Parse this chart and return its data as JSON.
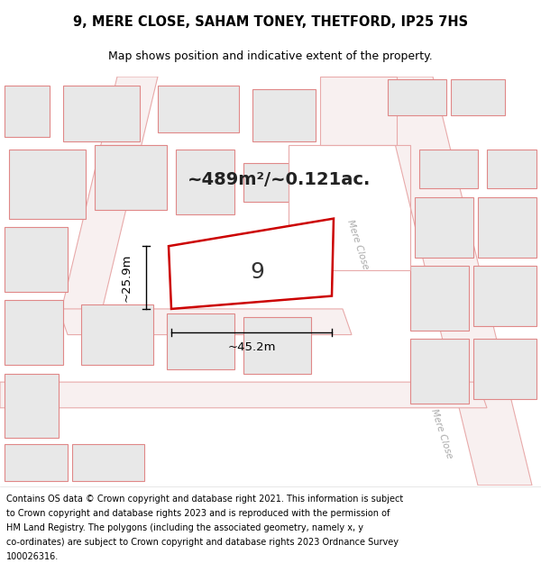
{
  "title_line1": "9, MERE CLOSE, SAHAM TONEY, THETFORD, IP25 7HS",
  "title_line2": "Map shows position and indicative extent of the property.",
  "area_text": "~489m²/~0.121ac.",
  "property_number": "9",
  "dim_width": "~45.2m",
  "dim_height": "~25.9m",
  "footer_lines": [
    "Contains OS data © Crown copyright and database right 2021. This information is subject",
    "to Crown copyright and database rights 2023 and is reproduced with the permission of",
    "HM Land Registry. The polygons (including the associated geometry, namely x, y",
    "co-ordinates) are subject to Crown copyright and database rights 2023 Ordnance Survey",
    "100026316."
  ],
  "map_bg": "#ffffff",
  "building_fill": "#e8e8e8",
  "building_edge": "#e08888",
  "road_edge": "#e8aaaa",
  "road_fill": "#f5e8e8",
  "plot_outline_color": "#cc0000",
  "street_label_color": "#aaaaaa",
  "street_label": "Mere Close",
  "fig_width": 6.0,
  "fig_height": 6.25,
  "title_fontsize": 10.5,
  "subtitle_fontsize": 9.0,
  "area_fontsize": 14.0,
  "footer_fontsize": 7.0
}
